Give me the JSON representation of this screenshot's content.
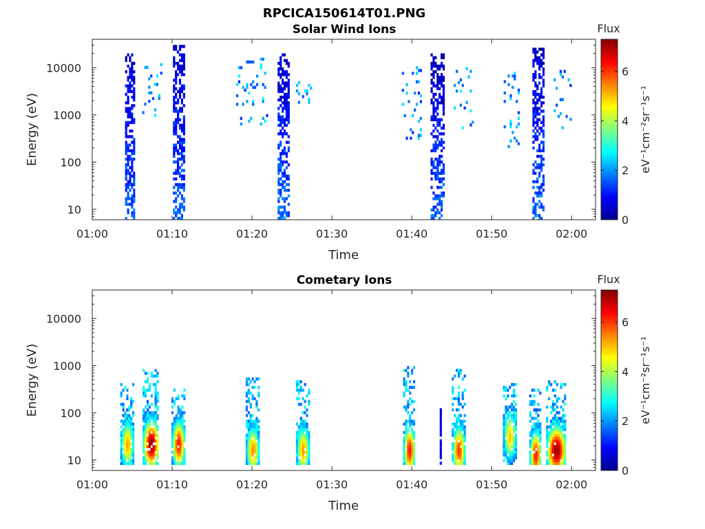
{
  "figure": {
    "title": "RPCICA150614T01.PNG"
  },
  "chart_data": [
    {
      "type": "heatmap",
      "title": "Solar Wind Ions",
      "xlabel": "Time",
      "ylabel": "Energy (eV)",
      "x_tick_labels": [
        "01:00",
        "01:10",
        "01:20",
        "01:30",
        "01:40",
        "01:50",
        "02:00"
      ],
      "x_tick_minutes": [
        0,
        10,
        20,
        30,
        40,
        50,
        60
      ],
      "xlim_minutes": [
        0,
        63
      ],
      "y_scale": "log",
      "ylim": [
        6,
        40000
      ],
      "y_tick_labels": [
        "10",
        "100",
        "1000",
        "10000"
      ],
      "y_tick_values": [
        10,
        100,
        1000,
        10000
      ],
      "colorbar": {
        "title": "Flux",
        "label": "eV⁻¹cm⁻²sr⁻¹s⁻¹",
        "range": [
          0,
          7.3
        ],
        "ticks": [
          "0",
          "2",
          "4",
          "6"
        ],
        "tick_values": [
          0,
          2,
          4,
          6
        ],
        "colormap": "jet"
      },
      "bursts": [
        {
          "t": 4.7,
          "w": 1.2,
          "emin": 6,
          "emax": 18000,
          "peak_e": 600,
          "flux_low": 1.6,
          "flux_high": 0.5
        },
        {
          "t": 10.8,
          "w": 1.4,
          "emin": 6,
          "emax": 30000,
          "peak_e": 500,
          "flux_low": 1.6,
          "flux_high": 0.5
        },
        {
          "t": 23.9,
          "w": 1.4,
          "emin": 6,
          "emax": 20000,
          "peak_e": 400,
          "flux_low": 1.7,
          "flux_high": 0.5
        },
        {
          "t": 43.2,
          "w": 1.7,
          "emin": 6,
          "emax": 18000,
          "peak_e": 600,
          "flux_low": 1.6,
          "flux_high": 0.3
        },
        {
          "t": 55.8,
          "w": 1.4,
          "emin": 6,
          "emax": 25000,
          "peak_e": 500,
          "flux_low": 1.7,
          "flux_high": 0.5
        }
      ],
      "sparse": [
        {
          "t": 7.5,
          "w": 2.5,
          "emin": 400,
          "emax": 12000,
          "flux": 2.0
        },
        {
          "t": 20.0,
          "w": 4.0,
          "emin": 600,
          "emax": 15000,
          "flux": 2.0
        },
        {
          "t": 26.5,
          "w": 2.0,
          "emin": 1000,
          "emax": 5000,
          "flux": 2.3
        },
        {
          "t": 40.0,
          "w": 2.5,
          "emin": 300,
          "emax": 10000,
          "flux": 1.9
        },
        {
          "t": 46.5,
          "w": 2.5,
          "emin": 500,
          "emax": 10000,
          "flux": 2.0
        },
        {
          "t": 52.5,
          "w": 2.0,
          "emin": 200,
          "emax": 10000,
          "flux": 1.9
        },
        {
          "t": 59.0,
          "w": 2.5,
          "emin": 500,
          "emax": 8000,
          "flux": 2.0
        }
      ]
    },
    {
      "type": "heatmap",
      "title": "Cometary Ions",
      "xlabel": "Time",
      "ylabel": "Energy (eV)",
      "x_tick_labels": [
        "01:00",
        "01:10",
        "01:20",
        "01:30",
        "01:40",
        "01:50",
        "02:00"
      ],
      "x_tick_minutes": [
        0,
        10,
        20,
        30,
        40,
        50,
        60
      ],
      "xlim_minutes": [
        0,
        63
      ],
      "y_scale": "log",
      "ylim": [
        6,
        40000
      ],
      "y_tick_labels": [
        "10",
        "100",
        "1000",
        "10000"
      ],
      "y_tick_values": [
        10,
        100,
        1000,
        10000
      ],
      "colorbar": {
        "title": "Flux",
        "label": "eV⁻¹cm⁻²sr⁻¹s⁻¹",
        "range": [
          0,
          7.3
        ],
        "ticks": [
          "0",
          "2",
          "4",
          "6"
        ],
        "tick_values": [
          0,
          2,
          4,
          6
        ],
        "colormap": "jet"
      },
      "bursts": [
        {
          "t": 4.3,
          "w": 1.6,
          "emin": 8,
          "emax": 400,
          "peak_e": 20,
          "peak_flux": 5.2
        },
        {
          "t": 7.3,
          "w": 2.0,
          "emin": 8,
          "emax": 800,
          "peak_e": 20,
          "peak_flux": 7.2
        },
        {
          "t": 10.7,
          "w": 1.6,
          "emin": 8,
          "emax": 300,
          "peak_e": 20,
          "peak_flux": 6.3
        },
        {
          "t": 20.0,
          "w": 1.6,
          "emin": 8,
          "emax": 500,
          "peak_e": 15,
          "peak_flux": 5.4
        },
        {
          "t": 26.3,
          "w": 1.6,
          "emin": 8,
          "emax": 500,
          "peak_e": 15,
          "peak_flux": 5.3
        },
        {
          "t": 39.6,
          "w": 1.4,
          "emin": 8,
          "emax": 900,
          "peak_e": 15,
          "peak_flux": 6.3
        },
        {
          "t": 45.8,
          "w": 1.6,
          "emin": 8,
          "emax": 800,
          "peak_e": 15,
          "peak_flux": 6.0
        },
        {
          "t": 52.2,
          "w": 1.6,
          "emin": 8,
          "emax": 400,
          "peak_e": 30,
          "peak_flux": 5.0
        },
        {
          "t": 55.4,
          "w": 1.4,
          "emin": 8,
          "emax": 300,
          "peak_e": 12,
          "peak_flux": 6.3
        },
        {
          "t": 58.0,
          "w": 2.4,
          "emin": 8,
          "emax": 450,
          "peak_e": 15,
          "peak_flux": 7.2
        }
      ],
      "spikes": [
        {
          "t": 43.5,
          "emin": 8,
          "emax": 120,
          "flux": 0.8
        }
      ]
    }
  ]
}
